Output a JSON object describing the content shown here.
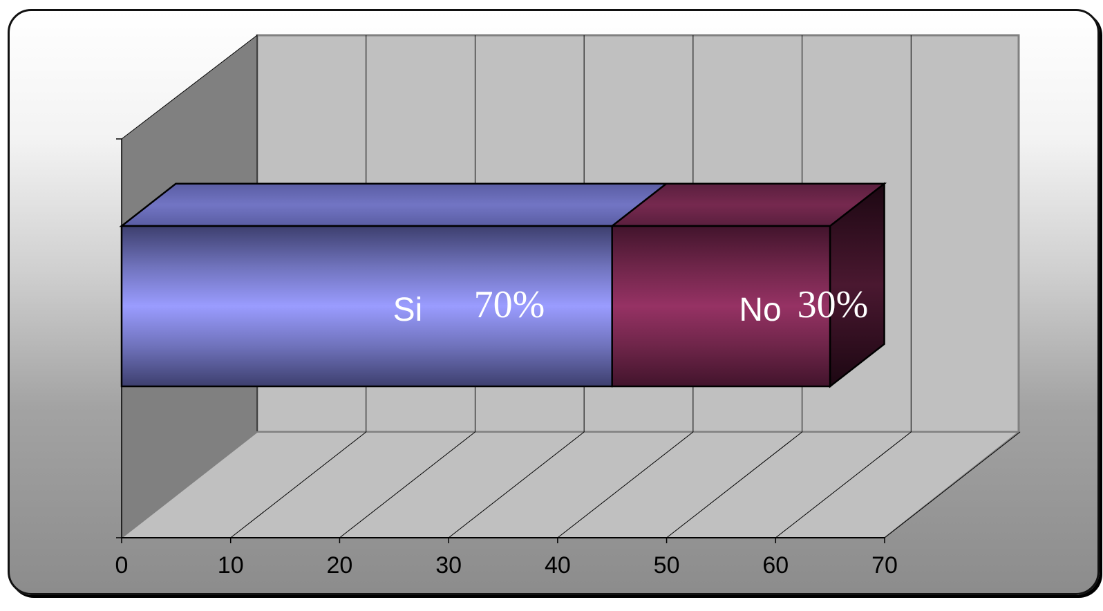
{
  "chart_data": {
    "type": "bar",
    "orientation": "horizontal",
    "stacked": true,
    "three_d": true,
    "categories": [
      ""
    ],
    "series": [
      {
        "name": "Si",
        "values": [
          45
        ],
        "data_label": "70%",
        "color": "#9a9cff"
      },
      {
        "name": "No",
        "values": [
          20
        ],
        "data_label": "30%",
        "color": "#963264"
      }
    ],
    "xlim": [
      0,
      70
    ],
    "x_ticks": [
      "0",
      "10",
      "20",
      "30",
      "40",
      "50",
      "60",
      "70"
    ],
    "gridlines": true,
    "legend": "none"
  },
  "colors": {
    "back_wall": "#c0c0c0",
    "side_wall": "#808080",
    "floor": "#c0c0c0"
  }
}
